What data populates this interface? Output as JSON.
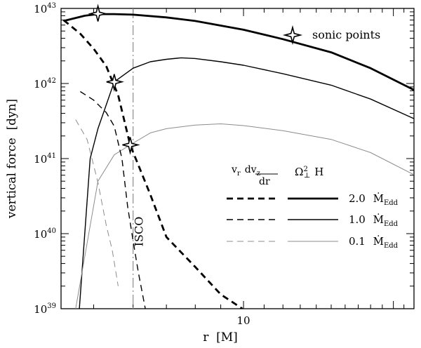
{
  "chart_data": {
    "type": "line",
    "xlabel": "r  [M]",
    "ylabel": "vertical force  [dyn]",
    "xscale": "log",
    "yscale": "log",
    "xlim": [
      4.3,
      22
    ],
    "ylim": [
      1e+39,
      1e+43
    ],
    "x_ticks": [
      {
        "value": 10,
        "label": "10"
      }
    ],
    "y_ticks": [
      {
        "value": 1e+39,
        "base": "10",
        "exp": "39"
      },
      {
        "value": 1e+40,
        "base": "10",
        "exp": "40"
      },
      {
        "value": 1e+41,
        "base": "10",
        "exp": "41"
      },
      {
        "value": 1e+42,
        "base": "10",
        "exp": "42"
      },
      {
        "value": 1e+43,
        "base": "10",
        "exp": "43"
      }
    ],
    "isco": {
      "x": 6,
      "label": "ISCO"
    },
    "legend": {
      "position": "center-right",
      "col1_header": "v_r dv_z/dr",
      "col2_header": "Ω⊥² H",
      "rows": [
        {
          "value": "2.0",
          "unit": "Edd",
          "weight": "thick",
          "color": "#000000"
        },
        {
          "value": "1.0",
          "unit": "Edd",
          "weight": "medium",
          "color": "#000000"
        },
        {
          "value": "0.1",
          "unit": "Edd",
          "weight": "thin",
          "color": "#8c8c8c"
        }
      ]
    },
    "sonic_legend": "sonic points",
    "sonic_points": [
      {
        "x": 5.1,
        "y": 8.5e+42
      },
      {
        "x": 5.5,
        "y": 1.05e+42
      },
      {
        "x": 5.92,
        "y": 1.52e+41
      }
    ],
    "series": [
      {
        "style": "thick-solid",
        "color": "#000000",
        "x": [
          4.35,
          4.8,
          5.1,
          5.5,
          6.0,
          7.0,
          8.0,
          10.0,
          12.0,
          15.0,
          18.0,
          22.0
        ],
        "y": [
          6.8e+42,
          8e+42,
          8.4e+42,
          8.4e+42,
          8.25e+42,
          7.6e+42,
          6.8e+42,
          5.2e+42,
          3.9e+42,
          2.6e+42,
          1.6e+42,
          8.2e+41
        ]
      },
      {
        "style": "medium-solid",
        "color": "#000000",
        "x": [
          4.68,
          4.92,
          5.1,
          5.5,
          6.0,
          6.5,
          7.0,
          7.5,
          8.0,
          9.0,
          10.0,
          12.0,
          15.0,
          18.0,
          22.0
        ],
        "y": [
          1e+39,
          1e+41,
          2.5e+41,
          1.05e+42,
          1.6e+42,
          1.95e+42,
          2.1e+42,
          2.2e+42,
          2.15e+42,
          1.95e+42,
          1.75e+42,
          1.35e+42,
          9.5e+41,
          6.2e+41,
          3.4e+41
        ]
      },
      {
        "style": "thin-solid",
        "color": "#8c8c8c",
        "x": [
          4.6,
          5.1,
          5.5,
          5.92,
          6.5,
          7.0,
          8.0,
          9.0,
          10.0,
          12.0,
          15.0,
          18.0,
          22.0
        ],
        "y": [
          1e+39,
          5e+40,
          1.12e+41,
          1.52e+41,
          2.2e+41,
          2.5e+41,
          2.8e+41,
          2.9e+41,
          2.75e+41,
          2.35e+41,
          1.8e+41,
          1.2e+41,
          6.1e+40
        ]
      },
      {
        "style": "thick-dashed",
        "color": "#000000",
        "x": [
          4.35,
          4.7,
          5.0,
          5.3,
          5.6,
          5.92,
          6.5,
          7.0,
          8.0,
          9.0,
          9.95
        ],
        "y": [
          7e+42,
          4.6e+42,
          2.9e+42,
          1.7e+42,
          7e+41,
          1.52e+41,
          3.3e+40,
          9e+39,
          3.6e+39,
          1.55e+39,
          1e+39
        ]
      },
      {
        "style": "medium-dashed",
        "color": "#000000",
        "x": [
          4.7,
          5.0,
          5.3,
          5.5,
          5.7,
          5.85,
          6.0,
          6.15,
          6.35
        ],
        "y": [
          7.8e+41,
          6e+41,
          4.1e+41,
          2.7e+41,
          1e+41,
          2.3e+40,
          8e+39,
          3e+39,
          1e+39
        ]
      },
      {
        "style": "thin-dashed",
        "color": "#8c8c8c",
        "x": [
          4.6,
          4.85,
          5.1,
          5.3,
          5.45,
          5.6
        ],
        "y": [
          3.3e+41,
          1.8e+41,
          4.8e+40,
          1.3e+40,
          6e+39,
          2e+39
        ]
      }
    ]
  }
}
